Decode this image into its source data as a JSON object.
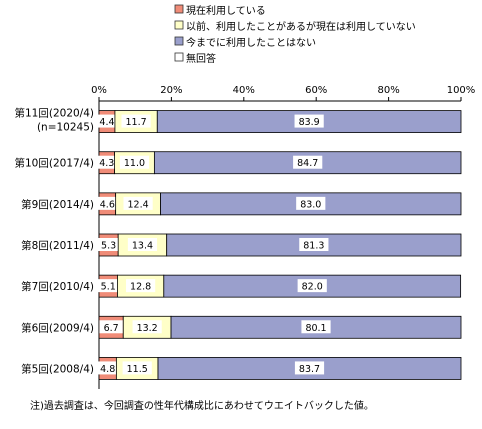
{
  "chart_data": {
    "type": "bar",
    "orientation": "horizontal",
    "stacked": true,
    "percent_stacked": true,
    "categories": [
      [
        "第11回(2020/4)",
        "(n=10245)"
      ],
      [
        "第10回(2017/4)"
      ],
      [
        "第9回(2014/4)"
      ],
      [
        "第8回(2011/4)"
      ],
      [
        "第7回(2010/4)"
      ],
      [
        "第6回(2009/4)"
      ],
      [
        "第5回(2008/4)"
      ]
    ],
    "series": [
      {
        "name": "現在利用している",
        "color": "#f08c78",
        "values": [
          4.4,
          4.3,
          4.6,
          5.3,
          5.1,
          6.7,
          4.8
        ]
      },
      {
        "name": "以前、利用したことがあるが現在は利用していない",
        "color": "#ffffc8",
        "values": [
          11.7,
          11.0,
          12.4,
          13.4,
          12.8,
          13.2,
          11.5
        ]
      },
      {
        "name": "今までに利用したことはない",
        "color": "#9a9fcc",
        "values": [
          83.9,
          84.7,
          83.0,
          81.3,
          82.0,
          80.1,
          83.7
        ]
      },
      {
        "name": "無回答",
        "color": "#ffffff",
        "values": [
          0,
          0,
          0,
          0,
          0,
          0,
          0
        ]
      }
    ],
    "x_ticks": [
      "0%",
      "20%",
      "40%",
      "60%",
      "80%",
      "100%"
    ],
    "xlim": [
      0,
      100
    ],
    "legend_position": "top",
    "gridlines": false
  },
  "footnote": "注)過去調査は、今回調査の性年代構成比にあわせてウエイトバックした値。"
}
